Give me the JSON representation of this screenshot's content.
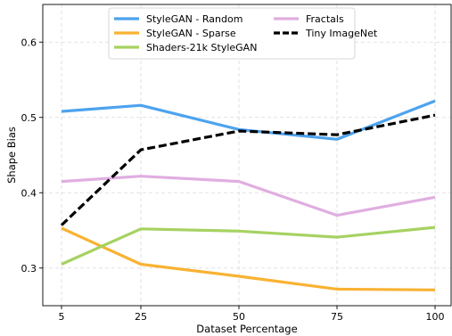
{
  "chart_data": {
    "type": "line",
    "title": "",
    "xlabel": "Dataset Percentage",
    "ylabel": "Shape Bias",
    "categories": [
      "5",
      "25",
      "50",
      "75",
      "100"
    ],
    "xlim": [
      0,
      4
    ],
    "ylim": [
      0.25,
      0.65
    ],
    "yticks": [
      "0.3",
      "0.4",
      "0.5",
      "0.6"
    ],
    "ytick_values": [
      0.3,
      0.4,
      0.5,
      0.6
    ],
    "grid": true,
    "legend_position": "top-center",
    "series": [
      {
        "name": "StyleGAN - Random",
        "color": "#4da3ee",
        "dash": "solid",
        "values": [
          0.508,
          0.516,
          0.484,
          0.471,
          0.522
        ]
      },
      {
        "name": "StyleGAN - Sparse",
        "color": "#f9b233",
        "dash": "solid",
        "values": [
          0.353,
          0.305,
          0.289,
          0.272,
          0.271
        ]
      },
      {
        "name": "Shaders-21k StyleGAN",
        "color": "#a6d262",
        "dash": "solid",
        "values": [
          0.305,
          0.352,
          0.349,
          0.341,
          0.354
        ]
      },
      {
        "name": "Fractals",
        "color": "#e0aee0",
        "dash": "solid",
        "values": [
          0.415,
          0.422,
          0.415,
          0.37,
          0.394
        ]
      },
      {
        "name": "Tiny ImageNet",
        "color": "#000000",
        "dash": "dashed",
        "values": [
          0.357,
          0.457,
          0.482,
          0.477,
          0.503
        ]
      }
    ]
  }
}
